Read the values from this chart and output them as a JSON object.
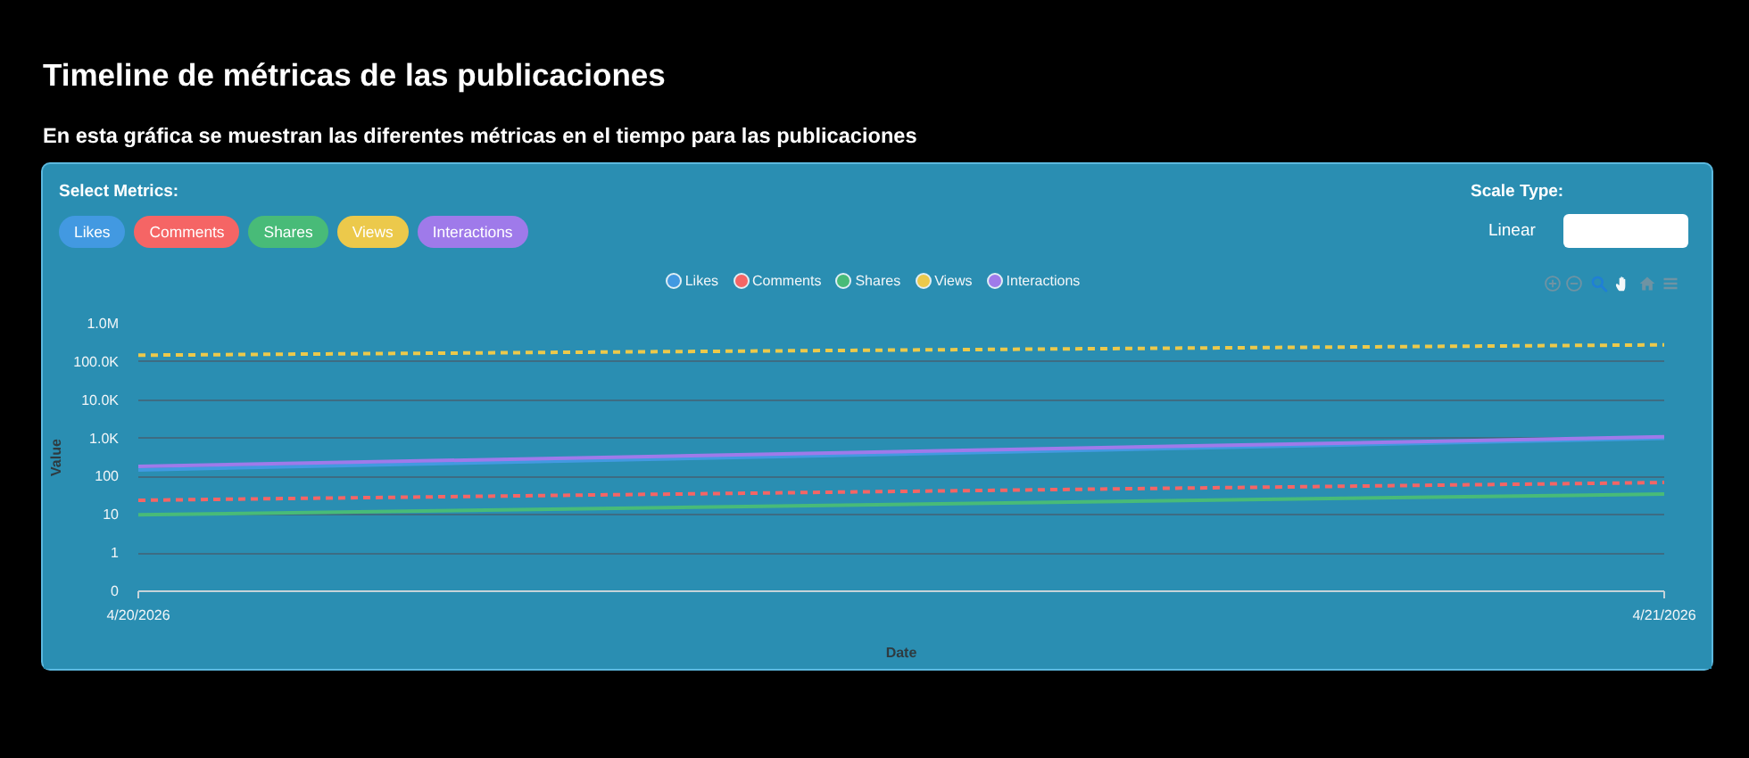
{
  "chart_data": {
    "type": "line",
    "title": "Timeline de métricas de las publicaciones",
    "subtitle": "En esta gráfica se muestran las diferentes métricas en el tiempo para las publicaciones",
    "xlabel": "Date",
    "ylabel": "Value",
    "annotations": [
      "Select Metrics:",
      "Scale Type:",
      "Linear"
    ],
    "x": [
      "2026-04-20",
      "2026-04-21"
    ],
    "xlim": [
      "2026-04-20",
      "2026-04-21"
    ],
    "xticks": [
      {
        "value": "2026-04-20",
        "label": "4/20/2026"
      },
      {
        "value": "2026-04-21",
        "label": "4/21/2026"
      }
    ],
    "ylim": [
      0,
      1000000
    ],
    "yticks": [
      0,
      1,
      10,
      100,
      {
        "value": 1000,
        "label": "1.0K"
      },
      {
        "value": 10000,
        "label": "10.0K"
      },
      {
        "value": 100000,
        "label": "100.0K"
      },
      {
        "value": 1000000,
        "label": "1.0M"
      }
    ],
    "log": true,
    "grid": "y",
    "legend": "top",
    "series": [
      {
        "name": "Likes",
        "color": "#4299e1",
        "values": [
          150,
          1000
        ]
      },
      {
        "name": "Comments",
        "color": "#f56565",
        "values": [
          24,
          70
        ],
        "line_style": "dashed"
      },
      {
        "name": "Shares",
        "color": "#48bb78",
        "values": [
          10,
          35
        ]
      },
      {
        "name": "Views",
        "color": "#ecc94b",
        "values": [
          150000,
          280000
        ],
        "line_style": "dashed"
      },
      {
        "name": "Interactions",
        "color": "#9f7aea",
        "values": [
          185,
          1100
        ]
      }
    ]
  }
}
